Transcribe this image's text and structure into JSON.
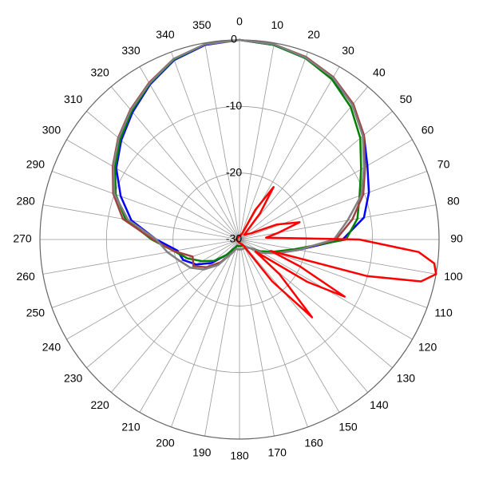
{
  "chart_data": {
    "type": "polar",
    "thetaticks": [
      0,
      10,
      20,
      30,
      40,
      50,
      60,
      70,
      80,
      90,
      100,
      110,
      120,
      130,
      140,
      150,
      160,
      170,
      180,
      190,
      200,
      210,
      220,
      230,
      240,
      250,
      260,
      270,
      280,
      290,
      300,
      310,
      320,
      330,
      340,
      350
    ],
    "rlim": [
      -30,
      0
    ],
    "rticks": [
      -30,
      -20,
      -10,
      0
    ],
    "grid": true,
    "series": [
      {
        "color": "#0000ff",
        "theta": [
          0,
          10,
          20,
          30,
          40,
          50,
          60,
          70,
          80,
          90,
          100,
          110,
          120,
          130,
          140,
          150,
          160,
          170,
          180,
          190,
          200,
          210,
          220,
          230,
          240,
          250,
          260,
          270,
          280,
          290,
          300,
          310,
          320,
          330,
          340,
          350
        ],
        "values": [
          0,
          -0.3,
          -1,
          -2.1,
          -3.5,
          -5.6,
          -7.8,
          -9.3,
          -11,
          -14.5,
          -21,
          -24,
          -26.5,
          -28,
          -28.5,
          -29,
          -29,
          -29,
          -29,
          -29,
          -29,
          -28.5,
          -27,
          -24.5,
          -22.5,
          -21,
          -20.5,
          -17.5,
          -13.5,
          -11,
          -8.6,
          -6.8,
          -5,
          -3.1,
          -1.3,
          -0.3
        ]
      },
      {
        "color": "#008000",
        "theta": [
          0,
          10,
          20,
          30,
          40,
          50,
          60,
          70,
          80,
          90,
          100,
          110,
          120,
          130,
          140,
          150,
          160,
          170,
          180,
          190,
          200,
          210,
          220,
          230,
          240,
          250,
          260,
          270,
          280,
          290,
          300,
          310,
          320,
          330,
          340,
          350
        ],
        "values": [
          0,
          -0.3,
          -1,
          -2.2,
          -4,
          -6.3,
          -8.9,
          -10.8,
          -12,
          -14,
          -21.6,
          -24.6,
          -26.5,
          -28,
          -28.5,
          -29,
          -29,
          -29,
          -29,
          -29,
          -29,
          -28.5,
          -27,
          -25,
          -23.5,
          -21.7,
          -20,
          -16.8,
          -12.6,
          -10.2,
          -8.4,
          -6.6,
          -4.8,
          -3,
          -1.2,
          -0.2
        ]
      },
      {
        "color": "#a04040",
        "theta": [
          0,
          10,
          20,
          30,
          40,
          50,
          60,
          70,
          80,
          90,
          100,
          110,
          120,
          130,
          140,
          150,
          160,
          170,
          180,
          190,
          200,
          210,
          220,
          230,
          240,
          250,
          260,
          270,
          280,
          290,
          300,
          310,
          320,
          330,
          340,
          350
        ],
        "values": [
          0,
          -0.2,
          -0.8,
          -1.8,
          -3.4,
          -5.6,
          -8.2,
          -10.2,
          -12.8,
          -15.5,
          -21,
          -24,
          -26,
          -28,
          -28.5,
          -28.5,
          -28.5,
          -28.5,
          -28.5,
          -28.5,
          -28.5,
          -27.5,
          -25.5,
          -23.5,
          -22,
          -22.5,
          -20,
          -17,
          -12.2,
          -9.8,
          -8,
          -6.2,
          -4.5,
          -2.8,
          -1.1,
          -0.2
        ]
      },
      {
        "color": "#808080",
        "theta": [
          0,
          10,
          20,
          30,
          40,
          50,
          60,
          70,
          80,
          90,
          100,
          110,
          120,
          130,
          140,
          150,
          160,
          170,
          180,
          190,
          200,
          210,
          220,
          230,
          240,
          250,
          260,
          270,
          280,
          290,
          300,
          310,
          320,
          330,
          340,
          350
        ],
        "values": [
          0,
          -0.2,
          -0.9,
          -1.9,
          -3.6,
          -5.8,
          -8.4,
          -10.5,
          -13.5,
          -15.8,
          -21,
          -24,
          -26,
          -28,
          -28.5,
          -28.5,
          -28.5,
          -28.5,
          -28.5,
          -28.5,
          -28.5,
          -27.5,
          -25,
          -23,
          -21.5,
          -20.5,
          -19,
          -17.5,
          -13,
          -10,
          -8.1,
          -6.3,
          -4.6,
          -2.9,
          -1.1,
          -0.2
        ]
      },
      {
        "color": "#ff0000",
        "theta": [
          0,
          25,
          28,
          33,
          38,
          45,
          62,
          68,
          74,
          80,
          86,
          90,
          94,
          97,
          100,
          103,
          106,
          110,
          114,
          118.5,
          122,
          127,
          131,
          137,
          142,
          148,
          180,
          270,
          350
        ],
        "values": [
          -29.5,
          -29,
          -25,
          -20.6,
          -25,
          -29,
          -28,
          -24,
          -20.6,
          -24,
          -26,
          -12,
          -3,
          -0.5,
          0,
          -2,
          -10,
          -25,
          -20,
          -12,
          -18,
          -27,
          -22,
          -14,
          -22,
          -29,
          -29.5,
          -29.5,
          -29.5
        ]
      }
    ]
  }
}
